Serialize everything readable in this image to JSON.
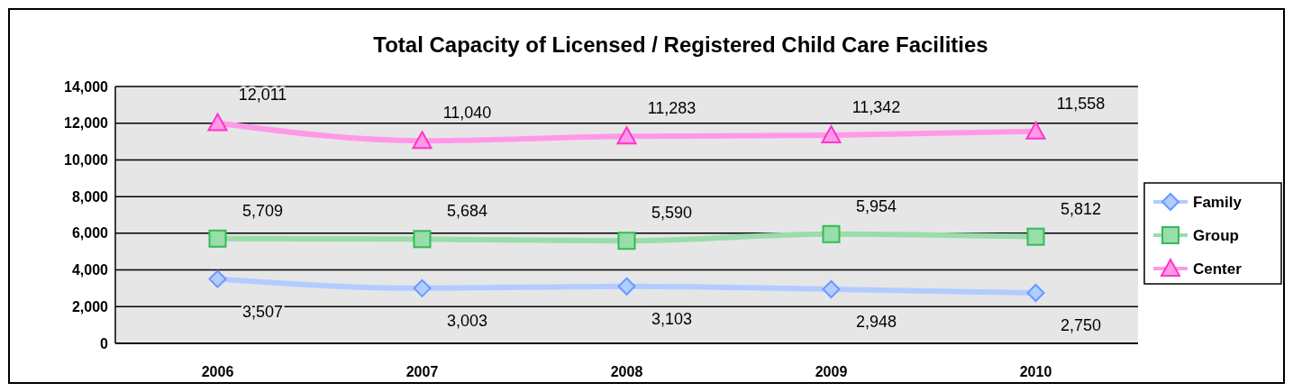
{
  "chart_data": {
    "type": "line",
    "title": "Total Capacity of Licensed / Registered Child Care Facilities",
    "categories": [
      "2006",
      "2007",
      "2008",
      "2009",
      "2010"
    ],
    "series": [
      {
        "name": "Family",
        "color": "#6699ff",
        "marker": "diamond",
        "values": [
          3507,
          3003,
          3103,
          2948,
          2750
        ],
        "value_labels": [
          "3,507",
          "3,003",
          "3,103",
          "2,948",
          "2,750"
        ]
      },
      {
        "name": "Group",
        "color": "#33bb55",
        "marker": "square",
        "values": [
          5709,
          5684,
          5590,
          5954,
          5812
        ],
        "value_labels": [
          "5,709",
          "5,684",
          "5,590",
          "5,954",
          "5,812"
        ]
      },
      {
        "name": "Center",
        "color": "#ff33cc",
        "marker": "triangle",
        "values": [
          12011,
          11040,
          11283,
          11342,
          11558
        ],
        "value_labels": [
          "12,011",
          "11,040",
          "11,283",
          "11,342",
          "11,558"
        ]
      }
    ],
    "ylim": [
      0,
      14000
    ],
    "yticks": [
      {
        "value": 0,
        "label": "0"
      },
      {
        "value": 2000,
        "label": "2,000"
      },
      {
        "value": 4000,
        "label": "4,000"
      },
      {
        "value": 6000,
        "label": "6,000"
      },
      {
        "value": 8000,
        "label": "8,000"
      },
      {
        "value": 10000,
        "label": "10,000"
      },
      {
        "value": 12000,
        "label": "12,000"
      },
      {
        "value": 14000,
        "label": "14,000"
      }
    ],
    "grid": "y",
    "legend": "right"
  }
}
